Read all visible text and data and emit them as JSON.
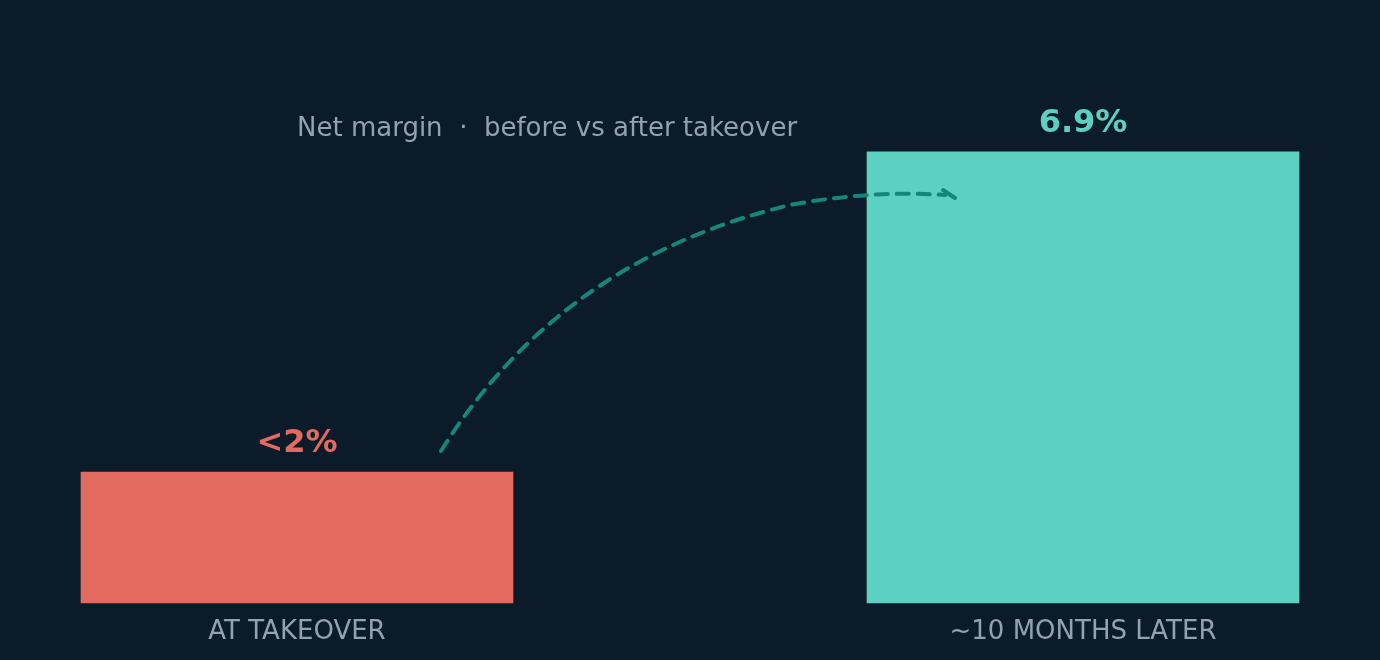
{
  "chart_data": {
    "type": "bar",
    "title": "Net margin  ·  before vs after takeover",
    "categories": [
      "AT TAKEOVER",
      "~10 MONTHS LATER"
    ],
    "values": [
      2,
      6.9
    ],
    "colors": [
      "#e26a5f",
      "#5dd0c4"
    ],
    "value_labels": [
      "<2%",
      "6.9%"
    ]
  }
}
